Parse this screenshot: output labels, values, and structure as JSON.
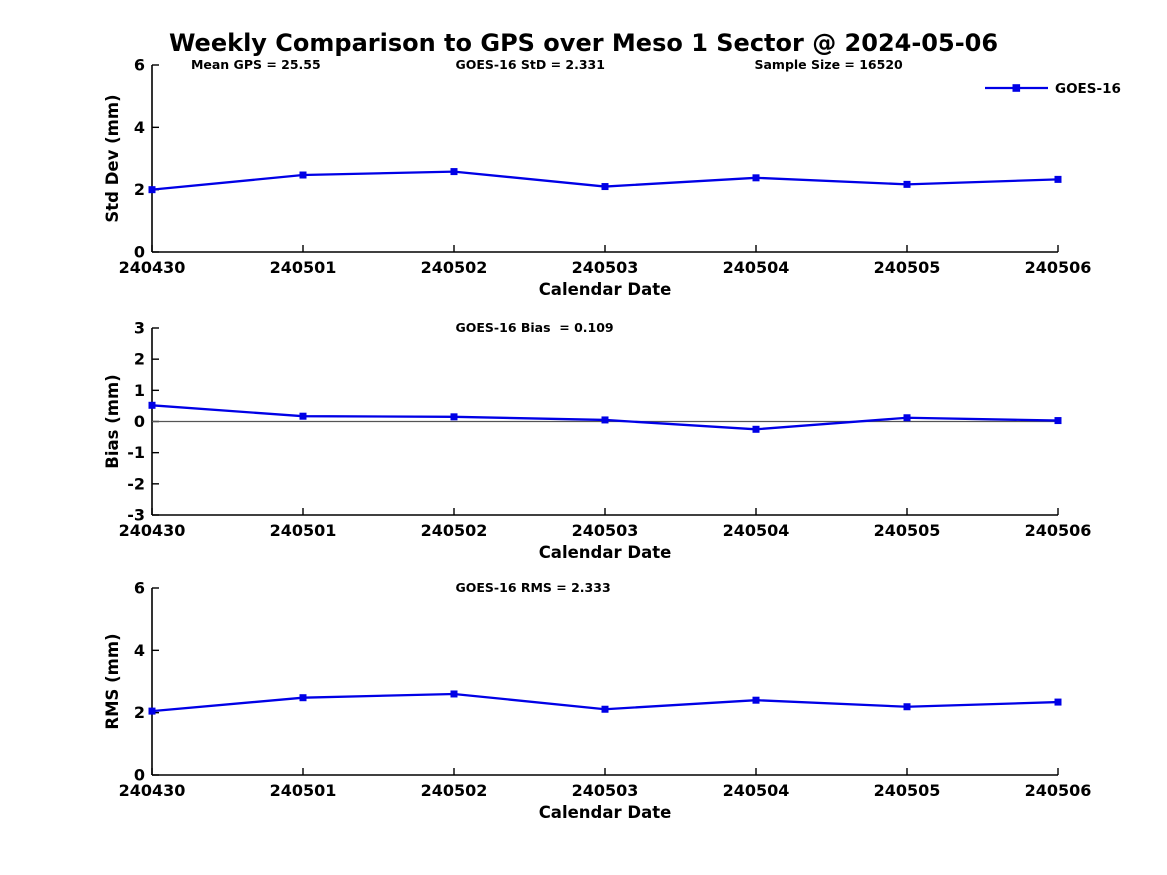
{
  "title": "Weekly Comparison to GPS over Meso 1 Sector @ 2024-05-06",
  "colors": {
    "series": "#0000E6",
    "zero_line": "#555555",
    "axis": "#000000",
    "text": "#000000",
    "background": "#FFFFFF"
  },
  "legend": {
    "label": "GOES-16",
    "position": "top-right-first-subplot"
  },
  "chart_data": [
    {
      "type": "line",
      "name": "std-dev",
      "categories": [
        "240430",
        "240501",
        "240502",
        "240503",
        "240504",
        "240505",
        "240506"
      ],
      "series": [
        {
          "name": "GOES-16",
          "values": [
            2.0,
            2.47,
            2.58,
            2.1,
            2.38,
            2.17,
            2.33
          ]
        }
      ],
      "title": "",
      "xlabel": "Calendar Date",
      "ylabel": "Std Dev (mm)",
      "ylim": [
        0,
        6
      ],
      "yticks": [
        0,
        2,
        4,
        6
      ],
      "grid": false,
      "zero_line": false,
      "legend": true,
      "marker": "square",
      "annotations": [
        {
          "text": "Mean GPS = 25.55",
          "xfrac": 0.043
        },
        {
          "text": "GOES-16 StD = 2.331",
          "xfrac": 0.335
        },
        {
          "text": "Sample Size = 16520",
          "xfrac": 0.665
        }
      ]
    },
    {
      "type": "line",
      "name": "bias",
      "categories": [
        "240430",
        "240501",
        "240502",
        "240503",
        "240504",
        "240505",
        "240506"
      ],
      "series": [
        {
          "name": "GOES-16",
          "values": [
            0.52,
            0.17,
            0.15,
            0.05,
            -0.25,
            0.12,
            0.03
          ]
        }
      ],
      "title": "",
      "xlabel": "Calendar Date",
      "ylabel": "Bias (mm)",
      "ylim": [
        -3,
        3
      ],
      "yticks": [
        -3,
        -2,
        -1,
        0,
        1,
        2,
        3
      ],
      "grid": false,
      "zero_line": true,
      "legend": false,
      "marker": "square",
      "annotations": [
        {
          "text": "GOES-16 Bias  = 0.109",
          "xfrac": 0.335
        }
      ]
    },
    {
      "type": "line",
      "name": "rms",
      "categories": [
        "240430",
        "240501",
        "240502",
        "240503",
        "240504",
        "240505",
        "240506"
      ],
      "series": [
        {
          "name": "GOES-16",
          "values": [
            2.05,
            2.48,
            2.6,
            2.11,
            2.4,
            2.19,
            2.34
          ]
        }
      ],
      "title": "",
      "xlabel": "Calendar Date",
      "ylabel": "RMS (mm)",
      "ylim": [
        0,
        6
      ],
      "yticks": [
        0,
        2,
        4,
        6
      ],
      "grid": false,
      "zero_line": false,
      "legend": false,
      "marker": "square",
      "annotations": [
        {
          "text": "GOES-16 RMS = 2.333",
          "xfrac": 0.335
        }
      ]
    }
  ]
}
